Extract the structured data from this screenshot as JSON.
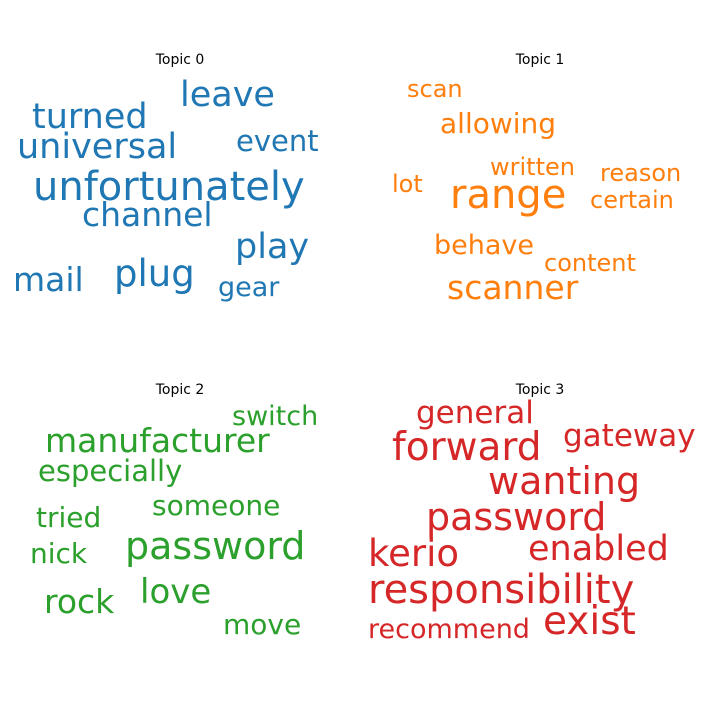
{
  "chart_data": {
    "type": "wordcloud",
    "topics": [
      {
        "title": "Topic 0",
        "color": "#1f77b4",
        "words": [
          "leave",
          "turned",
          "universal",
          "event",
          "unfortunately",
          "channel",
          "play",
          "mail",
          "plug",
          "gear"
        ]
      },
      {
        "title": "Topic 1",
        "color": "#ff7f0e",
        "words": [
          "scan",
          "allowing",
          "written",
          "reason",
          "lot",
          "range",
          "certain",
          "behave",
          "content",
          "scanner"
        ]
      },
      {
        "title": "Topic 2",
        "color": "#2ca02c",
        "words": [
          "switch",
          "manufacturer",
          "especially",
          "someone",
          "tried",
          "nick",
          "password",
          "rock",
          "love",
          "move"
        ]
      },
      {
        "title": "Topic 3",
        "color": "#d62728",
        "words": [
          "general",
          "forward",
          "gateway",
          "wanting",
          "password",
          "kerio",
          "enabled",
          "responsibility",
          "recommend",
          "exist"
        ]
      }
    ]
  }
}
